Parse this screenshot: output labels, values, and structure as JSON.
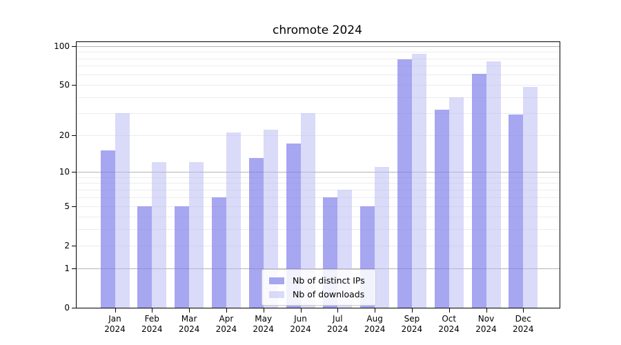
{
  "title": "chromote 2024",
  "colors": {
    "bar_distinct_ips": "rgba(124,124,234,0.68)",
    "bar_downloads": "rgba(181,181,243,0.5)",
    "major_gridline": "#b4b4b4",
    "minor_gridline": "#ececec",
    "axis": "#000000"
  },
  "chart_data": {
    "type": "bar",
    "title": "chromote 2024",
    "categories": [
      "Jan 2024",
      "Feb 2024",
      "Mar 2024",
      "Apr 2024",
      "May 2024",
      "Jun 2024",
      "Jul 2024",
      "Aug 2024",
      "Sep 2024",
      "Oct 2024",
      "Nov 2024",
      "Dec 2024"
    ],
    "series": [
      {
        "name": "Nb of distinct IPs",
        "values": [
          15,
          5,
          5,
          6,
          13,
          17,
          6,
          5,
          79,
          32,
          61,
          29
        ]
      },
      {
        "name": "Nb of downloads",
        "values": [
          30,
          12,
          12,
          21,
          22,
          30,
          7,
          11,
          87,
          40,
          76,
          48
        ]
      }
    ],
    "y_scale": "log1p",
    "ylim": [
      0,
      107
    ],
    "y_ticks": [
      100,
      50,
      20,
      10,
      5,
      2,
      1,
      0
    ],
    "y_major_gridlines": [
      1,
      10,
      100
    ],
    "y_minor_gridlines": [
      2,
      3,
      4,
      5,
      6,
      7,
      8,
      9,
      20,
      30,
      40,
      50,
      60,
      70,
      80,
      90
    ],
    "grid": true,
    "legend_position": "lower center"
  }
}
